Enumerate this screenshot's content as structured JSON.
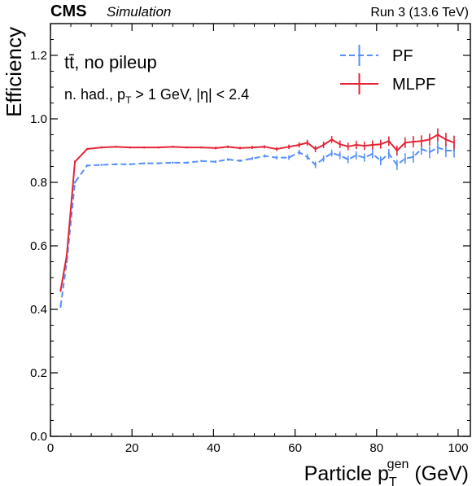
{
  "header": {
    "experiment": "CMS",
    "status": "Simulation",
    "run": "Run 3 (13.6 TeV)"
  },
  "annotations": {
    "process": "tt̄, no pileup",
    "selection_prefix": "n. had., p",
    "selection_sub": "T",
    "selection_suffix": " > 1 GeV, |η| < 2.4"
  },
  "axes": {
    "ylabel": "Efficiency",
    "xlabel_prefix": "Particle p",
    "xlabel_sub": "T",
    "xlabel_sup": "gen",
    "xlabel_suffix": " (GeV)"
  },
  "chart_data": {
    "type": "line",
    "title": "",
    "xlabel": "Particle p_T^gen (GeV)",
    "ylabel": "Efficiency",
    "xlim": [
      0,
      103
    ],
    "ylim": [
      0.0,
      1.3
    ],
    "x_ticks": [
      0,
      20,
      40,
      60,
      80,
      100
    ],
    "y_ticks": [
      0.0,
      0.2,
      0.4,
      0.6,
      0.8,
      1.0,
      1.2
    ],
    "x_tick_labels": [
      "0",
      "20",
      "40",
      "60",
      "80",
      "100"
    ],
    "y_tick_labels": [
      "0.0",
      "0.2",
      "0.4",
      "0.6",
      "0.8",
      "1.0",
      "1.2"
    ],
    "grid": false,
    "legend_position": "top-right",
    "x": [
      2.5,
      4.0,
      6.0,
      9.0,
      12.5,
      16.0,
      19.5,
      23.0,
      26.5,
      30.0,
      33.5,
      37.0,
      40.5,
      43.5,
      46.5,
      49.5,
      52.5,
      55.5,
      58.5,
      61.0,
      63.0,
      65.0,
      67.0,
      69.0,
      71.0,
      73.0,
      75.0,
      77.0,
      79.0,
      81.0,
      83.0,
      85.0,
      87.0,
      89.0,
      91.0,
      93.0,
      95.0,
      97.0,
      99.0
    ],
    "series": [
      {
        "name": "PF",
        "color": "#5790fc",
        "style": "dashed",
        "values": [
          0.41,
          0.55,
          0.8,
          0.853,
          0.855,
          0.857,
          0.857,
          0.86,
          0.86,
          0.862,
          0.862,
          0.867,
          0.865,
          0.872,
          0.868,
          0.875,
          0.883,
          0.878,
          0.878,
          0.895,
          0.88,
          0.855,
          0.875,
          0.892,
          0.885,
          0.872,
          0.885,
          0.878,
          0.89,
          0.868,
          0.89,
          0.855,
          0.875,
          0.88,
          0.905,
          0.895,
          0.91,
          0.9,
          0.9
        ],
        "errors": [
          0.005,
          0.004,
          0.004,
          0.003,
          0.003,
          0.003,
          0.003,
          0.003,
          0.003,
          0.003,
          0.003,
          0.003,
          0.004,
          0.004,
          0.004,
          0.005,
          0.005,
          0.006,
          0.007,
          0.008,
          0.009,
          0.01,
          0.01,
          0.011,
          0.012,
          0.012,
          0.013,
          0.013,
          0.014,
          0.014,
          0.015,
          0.016,
          0.017,
          0.018,
          0.018,
          0.019,
          0.02,
          0.021,
          0.022
        ]
      },
      {
        "name": "MLPF",
        "color": "#e42536",
        "style": "solid",
        "values": [
          0.46,
          0.57,
          0.865,
          0.905,
          0.91,
          0.912,
          0.91,
          0.91,
          0.91,
          0.912,
          0.91,
          0.91,
          0.908,
          0.912,
          0.908,
          0.91,
          0.912,
          0.905,
          0.912,
          0.918,
          0.925,
          0.905,
          0.918,
          0.935,
          0.92,
          0.913,
          0.918,
          0.915,
          0.918,
          0.92,
          0.93,
          0.9,
          0.925,
          0.928,
          0.93,
          0.935,
          0.95,
          0.935,
          0.925
        ],
        "errors": [
          0.005,
          0.004,
          0.004,
          0.003,
          0.003,
          0.003,
          0.003,
          0.003,
          0.003,
          0.003,
          0.003,
          0.003,
          0.004,
          0.004,
          0.004,
          0.005,
          0.005,
          0.006,
          0.007,
          0.008,
          0.009,
          0.01,
          0.01,
          0.011,
          0.012,
          0.012,
          0.013,
          0.013,
          0.014,
          0.014,
          0.015,
          0.016,
          0.017,
          0.018,
          0.018,
          0.019,
          0.02,
          0.021,
          0.022
        ]
      }
    ]
  }
}
